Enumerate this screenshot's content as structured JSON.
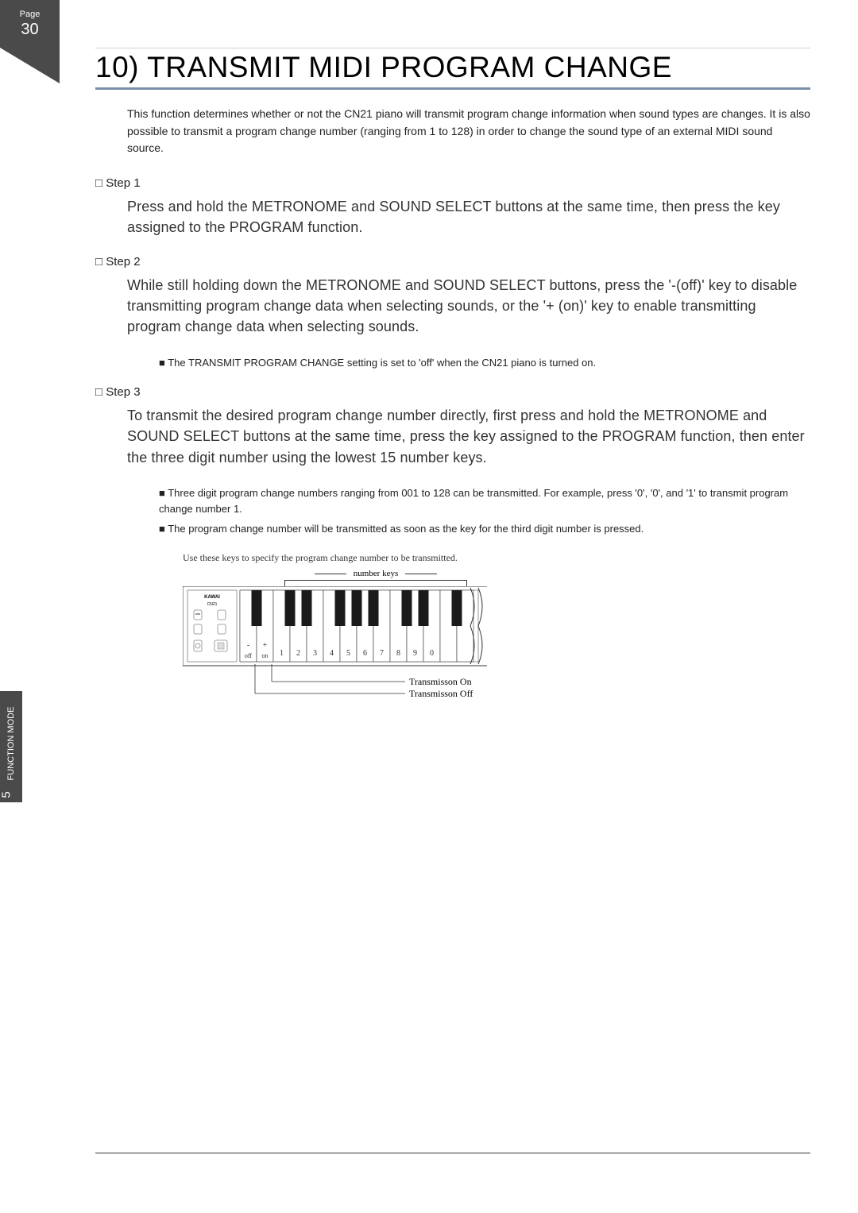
{
  "page": {
    "label": "Page",
    "number": "30"
  },
  "title": "10) TRANSMIT MIDI PROGRAM CHANGE",
  "intro": "This function determines whether or not the CN21 piano will transmit program change information when sound types are changes.  It is also possible to transmit a program change number (ranging from 1 to 128) in order to change the sound type of an external MIDI sound source.",
  "steps": [
    {
      "label": "Step 1",
      "body": "Press and hold the METRONOME and SOUND SELECT buttons at the same time, then press the key assigned to the PROGRAM function."
    },
    {
      "label": "Step 2",
      "body": "While still holding down the METRONOME and SOUND SELECT buttons, press the '-(off)' key to disable transmitting program change data when selecting sounds, or the '+ (on)' key to enable transmitting program change data when selecting sounds."
    },
    {
      "label": "Step 3",
      "body": "To transmit the desired program change number directly, first press and hold the METRONOME and SOUND SELECT buttons at the same time, press the key assigned to the PROGRAM function, then enter the three digit number using the lowest 15 number keys."
    }
  ],
  "note_step2": "The TRANSMIT PROGRAM CHANGE setting is set to 'off' when the CN21 piano is turned on.",
  "notes_step3": [
    "Three digit program change numbers ranging from 001 to 128 can be transmitted.  For example, press '0', '0', and '1' to transmit program change number 1.",
    "The program change number will be transmitted as soon as the key for the third digit number is pressed."
  ],
  "diagram": {
    "caption": "Use these keys to specify the program change number to be transmitted.",
    "number_keys_label": "number keys",
    "panel_brand": "KAWAI",
    "panel_model": "CN21",
    "key_labels": [
      "-",
      "+",
      "1",
      "2",
      "3",
      "4",
      "5",
      "6",
      "7",
      "8",
      "9",
      "0"
    ],
    "key_sublabels": [
      "off",
      "on",
      "",
      "",
      "",
      "",
      "",
      "",
      "",
      "",
      "",
      ""
    ],
    "callout_on": "Transmisson On",
    "callout_off": "Transmisson Off",
    "colors": {
      "white_key": "#ffffff",
      "black_key": "#1a1a1a",
      "outline": "#333333",
      "panel_bg": "#ffffff",
      "text": "#333333"
    },
    "white_key_width": 21,
    "keyboard_height": 70,
    "black_key_width": 13,
    "black_key_height": 45
  },
  "side_tab": {
    "section": "FUNCTION MODE",
    "num": "5"
  }
}
